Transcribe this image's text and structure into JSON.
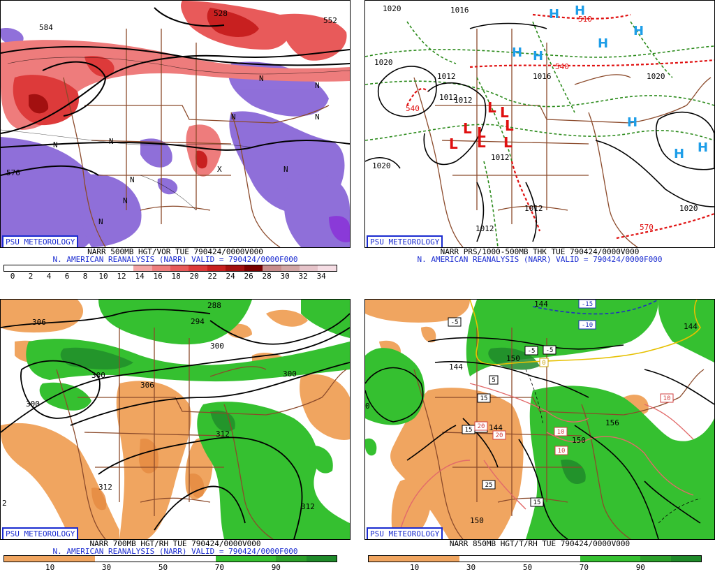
{
  "panels": [
    {
      "id": "p500",
      "logo": "PSU METEOROLOGY",
      "line1": "NARR 500MB HGT/VOR TUE 790424/0000V000",
      "line2": "N. AMERICAN REANALYSIS (NARR) VALID = 790424/0000F000",
      "colorbar": [
        "#ffffff",
        "#ffffff",
        "#ffffff",
        "#ffffff",
        "#ffffff",
        "#ffffff",
        "#ffffff",
        "#f4a6a6",
        "#ee7c7c",
        "#e85a5a",
        "#dd3a3a",
        "#c82020",
        "#a31010",
        "#7a0000",
        "#c88c8c",
        "#d2a6a6",
        "#e5c3c9",
        "#f5dde4"
      ],
      "ticks": [
        "0",
        "2",
        "4",
        "6",
        "8",
        "10",
        "12",
        "14",
        "16",
        "18",
        "20",
        "22",
        "24",
        "26",
        "28",
        "30",
        "32",
        "34"
      ],
      "labels": [
        "584",
        "576",
        "528",
        "552",
        "N",
        "N",
        "N",
        "N",
        "N",
        "N",
        "N",
        "N",
        "N",
        "X",
        "N"
      ]
    },
    {
      "id": "psfc",
      "logo": "PSU METEOROLOGY",
      "line1": "NARR PRS/1000-500MB THK TUE 790424/0000V000",
      "line2": "N. AMERICAN REANALYSIS (NARR) VALID = 790424/0000F000",
      "labels": [
        "1020",
        "1016",
        "1020",
        "1012",
        "1012",
        "1012",
        "1016",
        "1020",
        "1012",
        "1012",
        "1012",
        "1020",
        "1020",
        "540",
        "510",
        "540",
        "570"
      ],
      "highs": [
        "H",
        "H",
        "H",
        "H",
        "H",
        "H",
        "H",
        "H",
        "H"
      ],
      "lows": [
        "L",
        "L",
        "L",
        "L",
        "L",
        "L",
        "L",
        "L"
      ]
    },
    {
      "id": "p700",
      "logo": "PSU METEOROLOGY",
      "line1": "NARR 700MB HGT/RH TUE 790424/0000V000",
      "line2": "N. AMERICAN REANALYSIS (NARR) VALID = 790424/0000F000",
      "ticks": [
        "10",
        "30",
        "50",
        "70",
        "90"
      ],
      "labels": [
        "306",
        "288",
        "294",
        "300",
        "300",
        "300",
        "306",
        "300",
        "312",
        "312",
        "312",
        "2"
      ]
    },
    {
      "id": "p850",
      "logo": "PSU METEOROLOGY",
      "line1": "NARR 850MB HGT/T/RH TUE 790424/0000V000",
      "line2": "",
      "ticks": [
        "10",
        "30",
        "50",
        "70",
        "90"
      ],
      "labels": [
        "144",
        "150",
        "144",
        "144",
        "150",
        "156",
        "150",
        "144",
        "0"
      ],
      "tempboxes": [
        "-15",
        "-10",
        "-5",
        "-5",
        "-5",
        "0",
        "5",
        "15",
        "15",
        "15",
        "20",
        "20",
        "10",
        "10",
        "10",
        "25",
        "15"
      ]
    }
  ]
}
